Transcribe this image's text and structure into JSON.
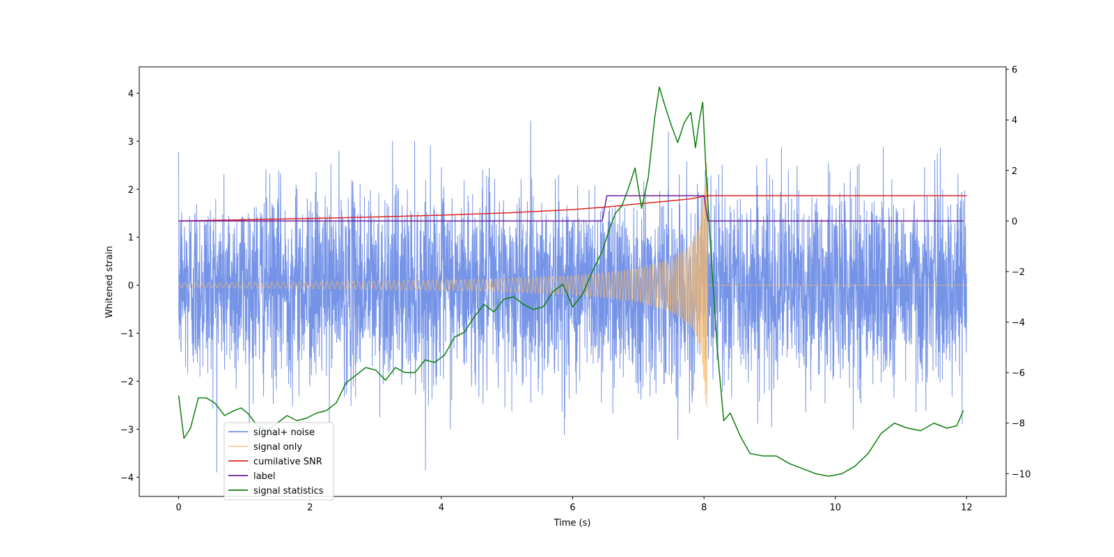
{
  "chart_data": {
    "type": "line",
    "xlabel": "Time (s)",
    "ylabel": "Whitened strain",
    "y2label": "",
    "xlim": [
      -0.6,
      12.6
    ],
    "ylim": [
      -4.4,
      4.55
    ],
    "y2lim": [
      -10.9,
      6.1
    ],
    "xticks": [
      0,
      2,
      4,
      6,
      8,
      10,
      12
    ],
    "yticks": [
      -4,
      -3,
      -2,
      -1,
      0,
      1,
      2,
      3,
      4
    ],
    "y2ticks": [
      -10,
      -8,
      -6,
      -4,
      -2,
      0,
      2,
      4,
      6
    ],
    "legend_position": "lower-left",
    "series": [
      {
        "name": "signal+ noise",
        "axis": "left",
        "color": "#6f8ee6",
        "t_range": [
          0,
          12
        ],
        "approx_envelope": [
          -3.9,
          4.2
        ],
        "typical_std": 1.0,
        "note_values": "dense noise trace sampled across 0–12 s"
      },
      {
        "name": "signal only",
        "axis": "left",
        "color": "#f5b96b",
        "t_range": [
          0,
          8.05
        ],
        "amplitude_envelope": {
          "t": [
            0,
            1,
            2,
            3,
            4,
            5,
            6,
            6.5,
            7,
            7.5,
            7.8,
            7.95,
            8.05
          ],
          "amp": [
            0.05,
            0.06,
            0.07,
            0.09,
            0.11,
            0.14,
            0.2,
            0.26,
            0.35,
            0.55,
            0.85,
            1.3,
            2.8
          ]
        },
        "after_merger_value": 0
      },
      {
        "name": "cumilative SNR",
        "axis": "right",
        "color": "#e0201c",
        "x": [
          0,
          1,
          2,
          3,
          4,
          5,
          6,
          6.5,
          7,
          7.5,
          7.8,
          7.95,
          8.05,
          12
        ],
        "y": [
          0,
          0.05,
          0.1,
          0.16,
          0.23,
          0.32,
          0.45,
          0.55,
          0.68,
          0.8,
          0.88,
          0.95,
          1.0,
          1.0
        ]
      },
      {
        "name": "label",
        "axis": "right",
        "color": "#6a1b9a",
        "x": [
          0,
          6.45,
          6.52,
          8.0,
          8.06,
          11.95
        ],
        "y": [
          0,
          0,
          1,
          1,
          0,
          0
        ]
      },
      {
        "name": "signal statistics",
        "axis": "right",
        "color": "#0a7d0a",
        "x": [
          0,
          0.08,
          0.18,
          0.3,
          0.42,
          0.55,
          0.7,
          0.85,
          0.95,
          1.05,
          1.2,
          1.35,
          1.5,
          1.65,
          1.8,
          1.95,
          2.1,
          2.25,
          2.4,
          2.55,
          2.7,
          2.85,
          3.0,
          3.15,
          3.3,
          3.45,
          3.6,
          3.75,
          3.9,
          4.05,
          4.2,
          4.35,
          4.5,
          4.65,
          4.8,
          4.95,
          5.1,
          5.25,
          5.4,
          5.55,
          5.7,
          5.85,
          6.0,
          6.15,
          6.3,
          6.45,
          6.55,
          6.65,
          6.75,
          6.85,
          6.95,
          7.05,
          7.15,
          7.25,
          7.32,
          7.4,
          7.5,
          7.6,
          7.7,
          7.8,
          7.87,
          7.93,
          7.98,
          8.03,
          8.1,
          8.2,
          8.3,
          8.4,
          8.55,
          8.7,
          8.9,
          9.1,
          9.3,
          9.5,
          9.7,
          9.9,
          10.1,
          10.3,
          10.5,
          10.7,
          10.9,
          11.1,
          11.3,
          11.5,
          11.7,
          11.85,
          11.95
        ],
        "y": [
          -6.9,
          -8.6,
          -8.2,
          -7.0,
          -7.0,
          -7.2,
          -7.7,
          -7.5,
          -7.4,
          -7.6,
          -8.1,
          -8.3,
          -8.0,
          -7.7,
          -7.9,
          -7.8,
          -7.6,
          -7.5,
          -7.2,
          -6.4,
          -6.1,
          -5.8,
          -5.9,
          -6.3,
          -5.8,
          -6.0,
          -6.0,
          -5.5,
          -5.6,
          -5.3,
          -4.6,
          -4.4,
          -3.8,
          -3.3,
          -3.6,
          -3.1,
          -3.0,
          -3.3,
          -3.5,
          -3.4,
          -2.8,
          -2.5,
          -3.4,
          -2.9,
          -2.0,
          -1.2,
          -0.4,
          0.3,
          0.6,
          1.3,
          2.1,
          0.5,
          1.7,
          4.1,
          5.3,
          4.6,
          3.8,
          3.1,
          3.9,
          4.3,
          2.9,
          4.0,
          4.7,
          2.0,
          -1.0,
          -5.0,
          -7.9,
          -7.6,
          -8.5,
          -9.2,
          -9.3,
          -9.3,
          -9.6,
          -9.8,
          -10.0,
          -10.1,
          -10.0,
          -9.7,
          -9.2,
          -8.4,
          -8.0,
          -8.2,
          -8.3,
          -8.0,
          -8.2,
          -8.1,
          -7.5
        ]
      }
    ]
  }
}
